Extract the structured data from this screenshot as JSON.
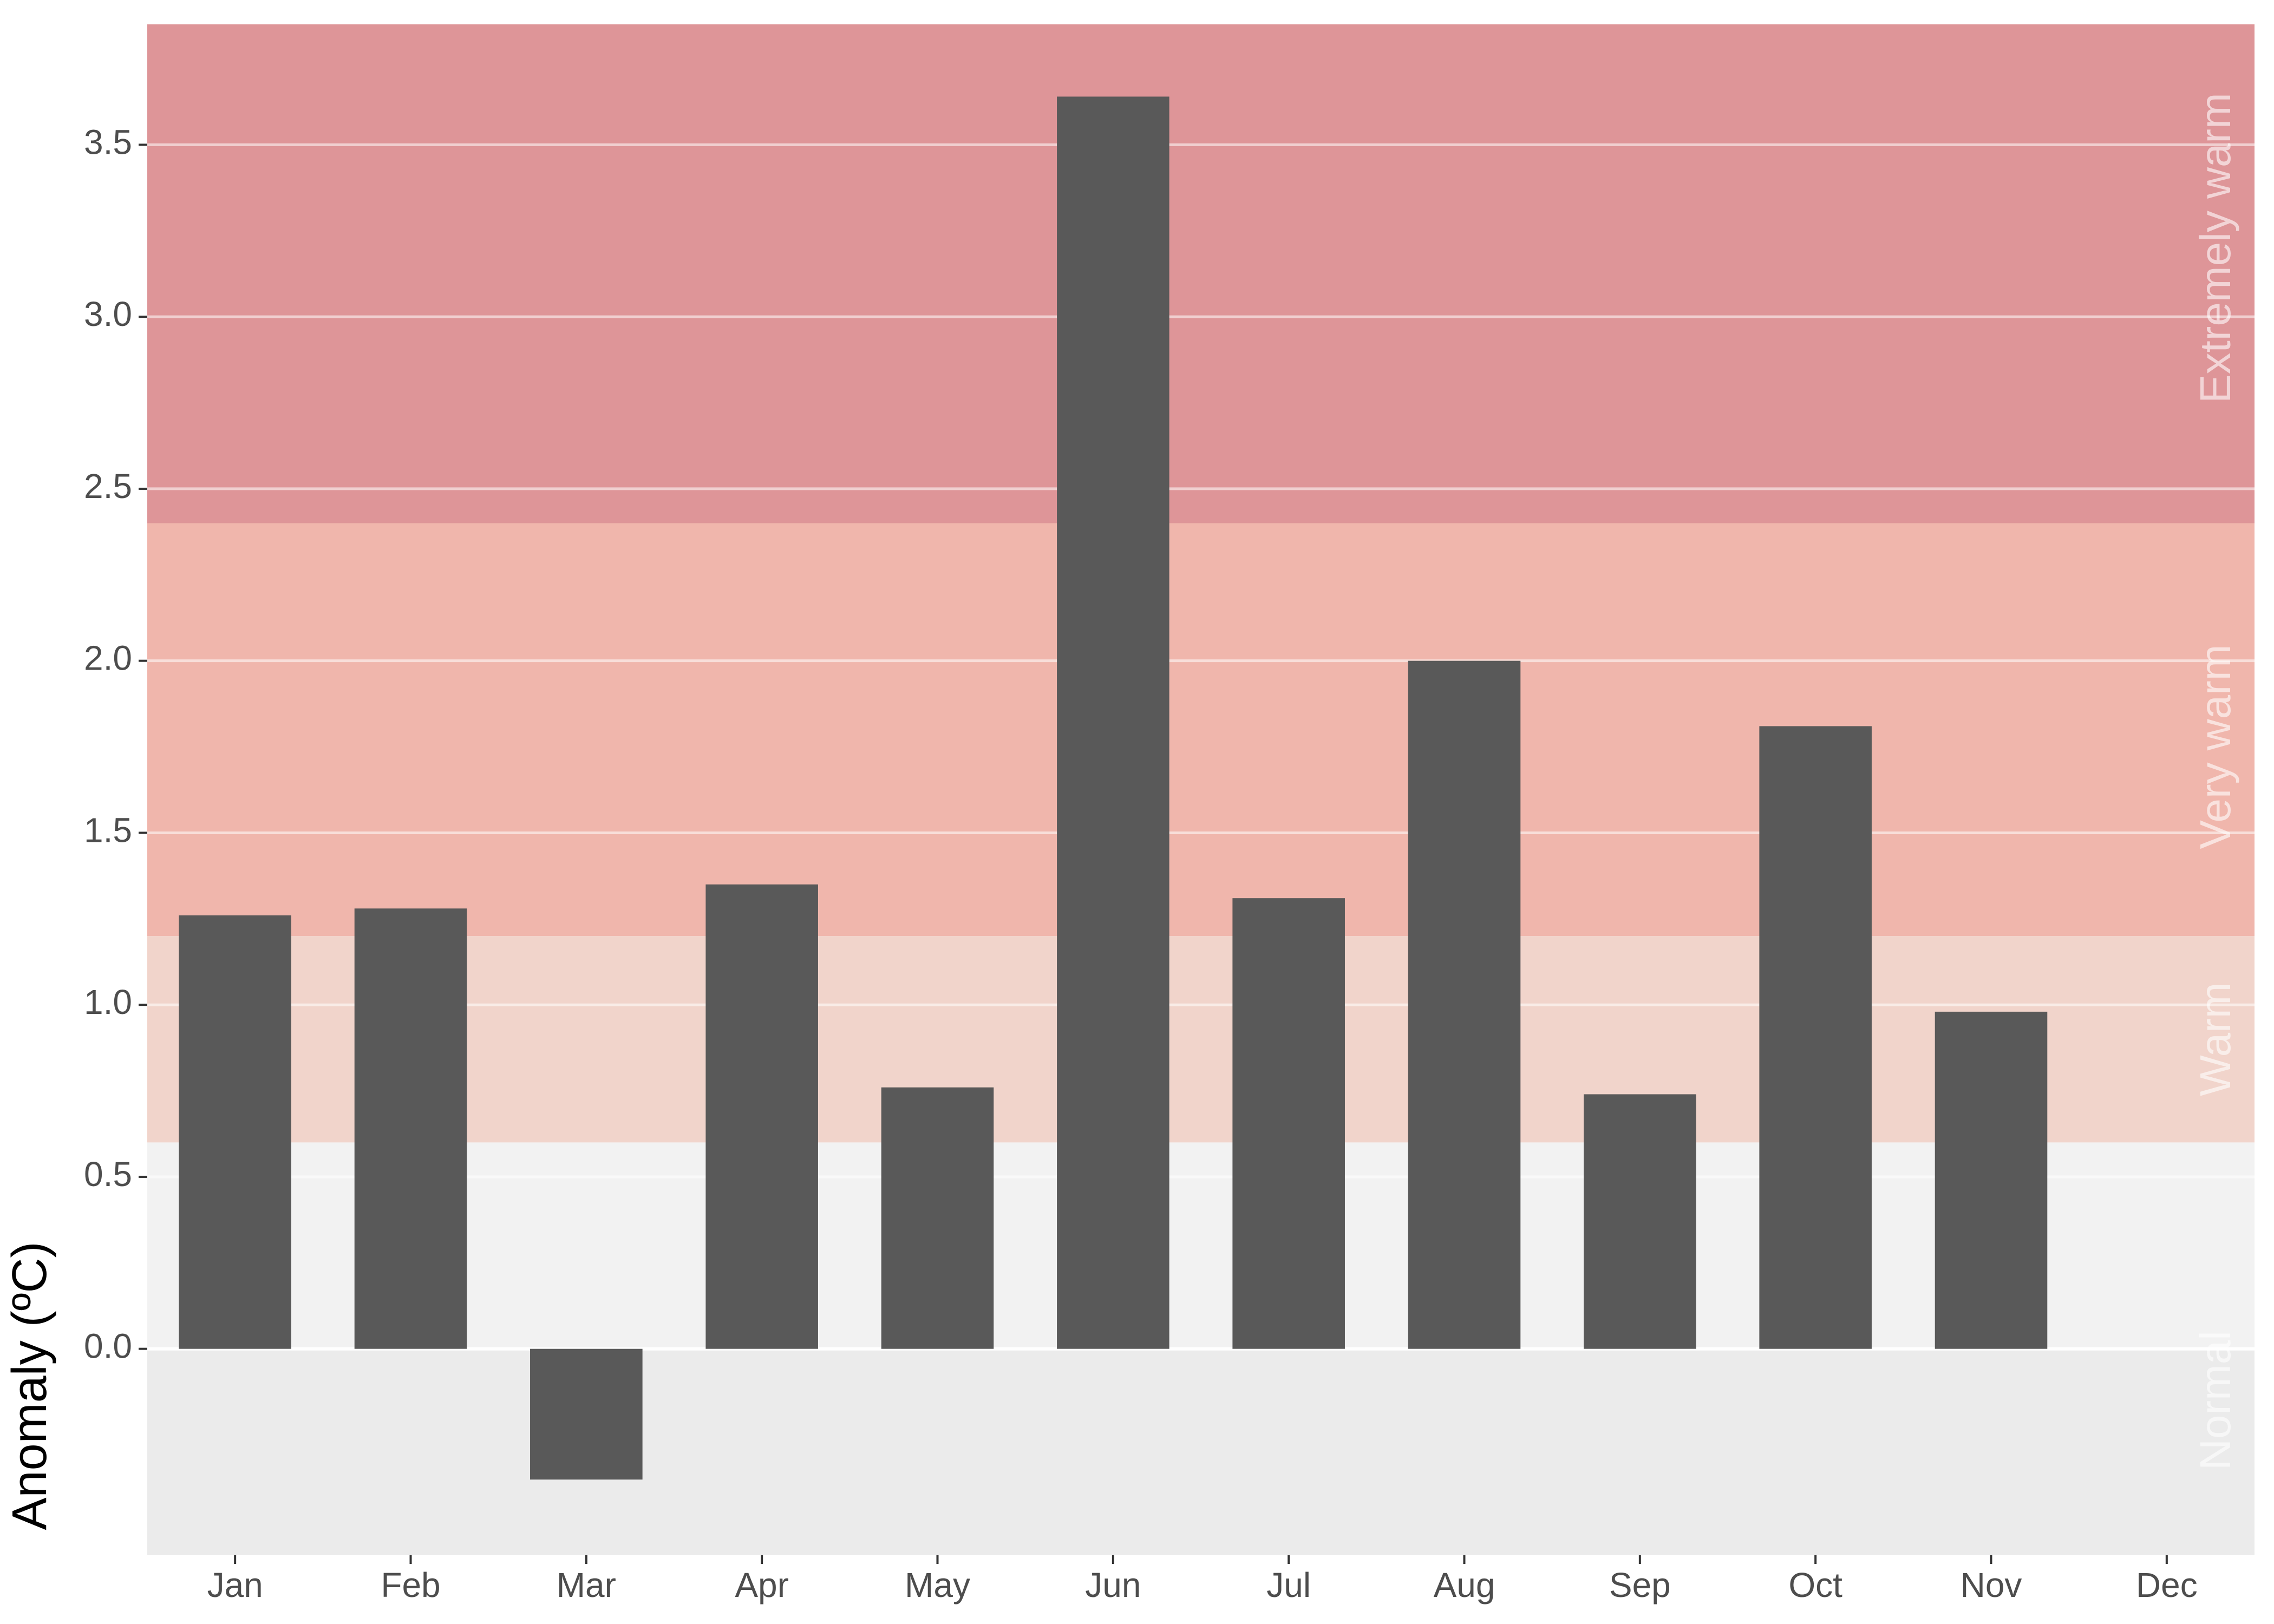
{
  "chart_data": {
    "type": "bar",
    "title": "",
    "xlabel": "",
    "ylabel": "Anomaly (ºC)",
    "categories": [
      "Jan",
      "Feb",
      "Mar",
      "Apr",
      "May",
      "Jun",
      "Jul",
      "Aug",
      "Sep",
      "Oct",
      "Nov",
      "Dec"
    ],
    "values": [
      1.26,
      1.28,
      -0.38,
      1.35,
      0.76,
      3.64,
      1.31,
      2.0,
      0.74,
      1.81,
      0.98,
      null
    ],
    "ylim": [
      -0.6,
      3.85
    ],
    "yticks": [
      "0.0",
      "0.5",
      "1.0",
      "1.5",
      "2.0",
      "2.5",
      "3.0",
      "3.5"
    ],
    "bar_color": "#595959",
    "grid": true,
    "legend": "none",
    "bands": [
      {
        "label": "Normal",
        "from": 0.0,
        "to": 0.6,
        "color": "#f2f2f2"
      },
      {
        "label": "Warm",
        "from": 0.6,
        "to": 1.2,
        "color": "#f1d4cb"
      },
      {
        "label": "Very warm",
        "from": 1.2,
        "to": 2.4,
        "color": "#f0b6ac"
      },
      {
        "label": "Extremely warm",
        "from": 2.4,
        "to": 3.85,
        "color": "#de9598"
      }
    ],
    "below_zero_color": "#ebebeb"
  }
}
